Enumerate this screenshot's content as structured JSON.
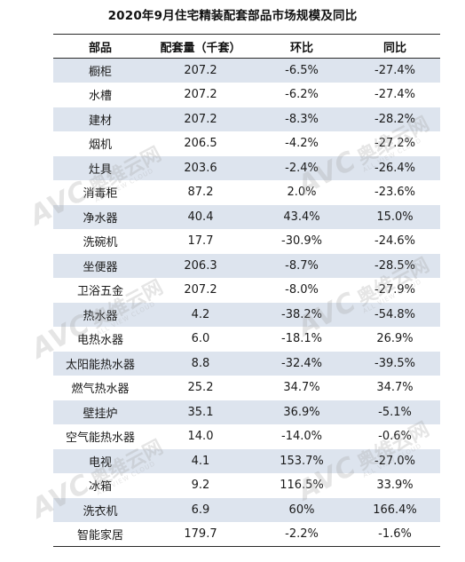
{
  "title": "2020年9月住宅精装配套部品市场规模及同比",
  "table": {
    "headers": [
      "部品",
      "配套量（千套）",
      "环比",
      "同比"
    ],
    "rows": [
      [
        "橱柜",
        "207.2",
        "-6.5%",
        "-27.4%"
      ],
      [
        "水槽",
        "207.2",
        "-6.2%",
        "-27.4%"
      ],
      [
        "建材",
        "207.2",
        "-8.3%",
        "-28.2%"
      ],
      [
        "烟机",
        "206.5",
        "-4.2%",
        "-27.2%"
      ],
      [
        "灶具",
        "203.6",
        "-2.4%",
        "-26.4%"
      ],
      [
        "消毒柜",
        "87.2",
        "2.0%",
        "-23.6%"
      ],
      [
        "净水器",
        "40.4",
        "43.4%",
        "15.0%"
      ],
      [
        "洗碗机",
        "17.7",
        "-30.9%",
        "-24.6%"
      ],
      [
        "坐便器",
        "206.3",
        "-8.7%",
        "-28.5%"
      ],
      [
        "卫浴五金",
        "207.2",
        "-8.0%",
        "-27.9%"
      ],
      [
        "热水器",
        "4.2",
        "-38.2%",
        "-54.8%"
      ],
      [
        "电热水器",
        "6.0",
        "-18.1%",
        "26.9%"
      ],
      [
        "太阳能热水器",
        "8.8",
        "-32.4%",
        "-39.5%"
      ],
      [
        "燃气热水器",
        "25.2",
        "34.7%",
        "34.7%"
      ],
      [
        "壁挂炉",
        "35.1",
        "36.9%",
        "-5.1%"
      ],
      [
        "空气能热水器",
        "14.0",
        "-14.0%",
        "-0.6%"
      ],
      [
        "电视",
        "4.1",
        "153.7%",
        "-27.0%"
      ],
      [
        "冰箱",
        "9.2",
        "116.5%",
        "33.9%"
      ],
      [
        "洗衣机",
        "6.9",
        "60%",
        "166.4%"
      ],
      [
        "智能家居",
        "179.7",
        "-2.2%",
        "-1.6%"
      ]
    ]
  },
  "watermark": {
    "logo": "AVC",
    "brand": "奥维云网",
    "tagline": "ALL VIEW CLOUD"
  },
  "colors": {
    "row_shade": "#dde4ee",
    "row_plain": "#ffffff",
    "rule": "#2a2a2a"
  }
}
